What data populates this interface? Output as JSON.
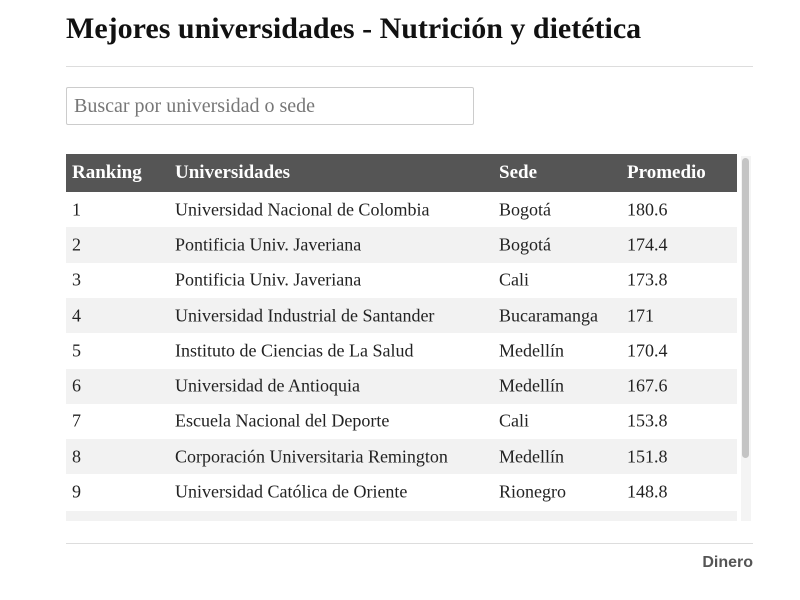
{
  "header": {
    "title": "Mejores universidades - Nutrición y dietética"
  },
  "search": {
    "placeholder": "Buscar por universidad o sede"
  },
  "table": {
    "columns": [
      "Ranking",
      "Universidades",
      "Sede",
      "Promedio"
    ],
    "rows": [
      [
        1,
        "Universidad Nacional de Colombia",
        "Bogotá",
        180.6
      ],
      [
        2,
        "Pontificia Univ. Javeriana",
        "Bogotá",
        174.4
      ],
      [
        3,
        "Pontificia Univ. Javeriana",
        "Cali",
        173.8
      ],
      [
        4,
        "Universidad Industrial de Santander",
        "Bucaramanga",
        171
      ],
      [
        5,
        "Instituto de Ciencias de La Salud",
        "Medellín",
        170.4
      ],
      [
        6,
        "Universidad de Antioquia",
        "Medellín",
        167.6
      ],
      [
        7,
        "Escuela Nacional del Deporte",
        "Cali",
        153.8
      ],
      [
        8,
        "Corporación Universitaria Remington",
        "Medellín",
        151.8
      ],
      [
        9,
        "Universidad Católica de Oriente",
        "Rionegro",
        148.8
      ]
    ]
  },
  "footer": {
    "brand": "Dinero"
  }
}
